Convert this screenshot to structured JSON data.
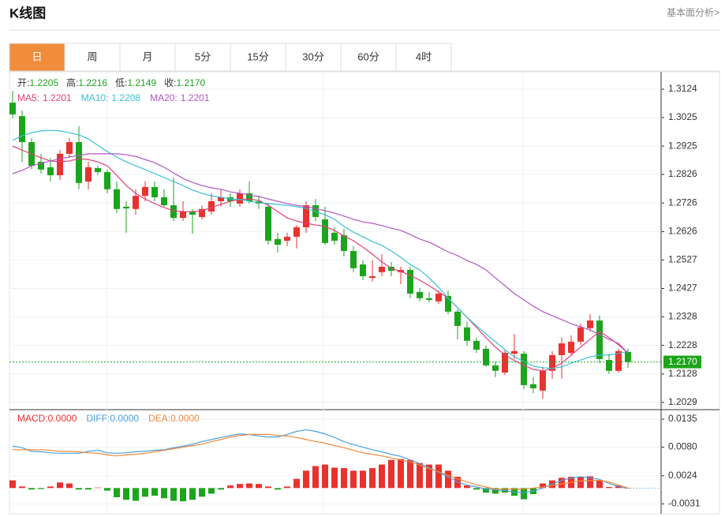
{
  "header": {
    "title": "K线图",
    "link": "基本面分析>"
  },
  "tabs": [
    "日",
    "周",
    "月",
    "5分",
    "15分",
    "30分",
    "60分",
    "4时"
  ],
  "active_tab": 0,
  "chart_data": [
    {
      "type": "candlestick",
      "info": [
        {
          "label": "开:",
          "value": "1.2205"
        },
        {
          "label": "高:",
          "value": "1.2216"
        },
        {
          "label": "低:",
          "value": "1.2149"
        },
        {
          "label": "收:",
          "value": "1.2170"
        }
      ],
      "up_color": "#e8322e",
      "down_color": "#1ca51c",
      "ylim": [
        1.2006,
        1.3182
      ],
      "yticks": [
        1.3124,
        1.3025,
        1.2925,
        1.2826,
        1.2726,
        1.2626,
        1.2527,
        1.2427,
        1.2328,
        1.2228,
        1.2128,
        1.2029
      ],
      "grid": true,
      "last_price": {
        "value": 1.217,
        "label": "1.2170"
      },
      "open": [
        1.3077,
        1.303,
        1.2939,
        1.287,
        1.2851,
        1.2823,
        1.2898,
        1.2939,
        1.2801,
        1.2848,
        1.2834,
        1.2774,
        1.2713,
        1.2705,
        1.2751,
        1.2782,
        1.2746,
        1.2718,
        1.2674,
        1.2696,
        1.2677,
        1.2696,
        1.2732,
        1.2746,
        1.2724,
        1.276,
        1.2732,
        1.2713,
        1.26,
        1.2594,
        1.2608,
        1.2641,
        1.2718,
        1.2669,
        1.2622,
        1.2613,
        1.2558,
        1.2511,
        1.2464,
        1.2484,
        1.2503,
        1.2484,
        1.2492,
        1.2415,
        1.2393,
        1.2382,
        1.2401,
        1.2346,
        1.2291,
        1.2244,
        1.2216,
        1.2158,
        1.2133,
        1.2199,
        1.2199,
        1.2092,
        1.207,
        1.2139,
        1.2194,
        1.2202,
        1.2241,
        1.2288,
        1.2315,
        1.2177,
        1.2139,
        1.2205
      ],
      "high": [
        1.3118,
        1.305,
        1.2953,
        1.2898,
        1.2884,
        1.2911,
        1.2953,
        1.2994,
        1.287,
        1.2856,
        1.2843,
        1.2801,
        1.2732,
        1.2774,
        1.2801,
        1.2801,
        1.2774,
        1.2815,
        1.2732,
        1.2705,
        1.2718,
        1.276,
        1.2774,
        1.276,
        1.2774,
        1.2801,
        1.2751,
        1.2724,
        1.2622,
        1.2622,
        1.2649,
        1.2732,
        1.274,
        1.2713,
        1.2641,
        1.2636,
        1.2575,
        1.2525,
        1.2525,
        1.2547,
        1.252,
        1.2503,
        1.2503,
        1.2429,
        1.2415,
        1.242,
        1.242,
        1.2354,
        1.231,
        1.2255,
        1.2227,
        1.2172,
        1.2213,
        1.2268,
        1.2208,
        1.2117,
        1.2153,
        1.2208,
        1.2255,
        1.2263,
        1.2304,
        1.2337,
        1.2332,
        1.2199,
        1.2216,
        1.2216
      ],
      "low": [
        1.3022,
        1.287,
        1.2843,
        1.2829,
        1.2801,
        1.2807,
        1.2884,
        1.2774,
        1.2774,
        1.2823,
        1.276,
        1.2691,
        1.2622,
        1.2685,
        1.2732,
        1.2732,
        1.2713,
        1.2663,
        1.2663,
        1.2619,
        1.2669,
        1.2685,
        1.2713,
        1.2713,
        1.2713,
        1.2724,
        1.2705,
        1.258,
        1.2553,
        1.2575,
        1.2567,
        1.2622,
        1.2663,
        1.258,
        1.258,
        1.2539,
        1.2484,
        1.2456,
        1.2451,
        1.247,
        1.247,
        1.2442,
        1.2393,
        1.2382,
        1.2379,
        1.2373,
        1.2337,
        1.2249,
        1.2227,
        1.2202,
        1.2153,
        1.2117,
        1.2125,
        1.218,
        1.2075,
        1.2061,
        1.2042,
        1.2111,
        1.2111,
        1.2194,
        1.223,
        1.2277,
        1.2166,
        1.2128,
        1.2133,
        1.2149
      ],
      "close": [
        1.3036,
        1.2939,
        1.2856,
        1.2843,
        1.2823,
        1.2898,
        1.2939,
        1.2796,
        1.2851,
        1.2834,
        1.2774,
        1.2705,
        1.2707,
        1.2751,
        1.2782,
        1.2746,
        1.2718,
        1.2674,
        1.2696,
        1.2685,
        1.2705,
        1.2732,
        1.2746,
        1.2732,
        1.276,
        1.2732,
        1.2724,
        1.2594,
        1.258,
        1.2608,
        1.2641,
        1.2718,
        1.2677,
        1.2586,
        1.2594,
        1.2558,
        1.2498,
        1.247,
        1.247,
        1.2503,
        1.2489,
        1.2492,
        1.2409,
        1.2393,
        1.2387,
        1.2409,
        1.2346,
        1.2296,
        1.2244,
        1.2213,
        1.2158,
        1.2139,
        1.2202,
        1.2208,
        1.2089,
        1.2078,
        1.2139,
        1.2194,
        1.2235,
        1.2241,
        1.2291,
        1.2315,
        1.218,
        1.2139,
        1.2208,
        1.217
      ],
      "ma_series": [
        {
          "name": "MA5:",
          "color": "#e0407c",
          "values": [
            1.2925,
            1.2911,
            1.2898,
            1.2884,
            1.2873,
            1.287,
            1.2873,
            1.2881,
            1.2878,
            1.287,
            1.2856,
            1.2823,
            1.2787,
            1.276,
            1.274,
            1.2724,
            1.271,
            1.2699,
            1.2696,
            1.2696,
            1.2699,
            1.271,
            1.2721,
            1.2732,
            1.2738,
            1.274,
            1.2735,
            1.2718,
            1.2696,
            1.2674,
            1.2663,
            1.2655,
            1.2649,
            1.2644,
            1.263,
            1.2611,
            1.2594,
            1.2572,
            1.2547,
            1.252,
            1.2498,
            1.2486,
            1.2473,
            1.2456,
            1.2437,
            1.2415,
            1.2393,
            1.236,
            1.2326,
            1.2291,
            1.2255,
            1.2222,
            1.2194,
            1.2175,
            1.2158,
            1.2144,
            1.2139,
            1.2147,
            1.2166,
            1.2194,
            1.2222,
            1.2249,
            1.2277,
            1.2255,
            1.223,
            1.2201
          ]
        },
        {
          "name": "MA10:",
          "color": "#3bbfd6",
          "values": [
            1.2945,
            1.2961,
            1.2972,
            1.2978,
            1.298,
            1.2978,
            1.2972,
            1.2964,
            1.295,
            1.2928,
            1.2906,
            1.2887,
            1.287,
            1.2856,
            1.2843,
            1.2829,
            1.2815,
            1.2801,
            1.2787,
            1.2771,
            1.276,
            1.2751,
            1.2746,
            1.274,
            1.2738,
            1.2732,
            1.2727,
            1.2724,
            1.2721,
            1.2718,
            1.2713,
            1.2707,
            1.2696,
            1.2685,
            1.2669,
            1.2644,
            1.2624,
            1.2608,
            1.2591,
            1.2578,
            1.2558,
            1.2536,
            1.2511,
            1.2492,
            1.2464,
            1.2431,
            1.2393,
            1.236,
            1.2326,
            1.2296,
            1.2268,
            1.2241,
            1.2213,
            1.2188,
            1.2172,
            1.2155,
            1.215,
            1.2147,
            1.2153,
            1.2166,
            1.2177,
            1.2188,
            1.2194,
            1.2194,
            1.2199,
            1.2208
          ]
        },
        {
          "name": "MA20:",
          "color": "#b255c6",
          "values": [
            1.2829,
            1.284,
            1.2856,
            1.2865,
            1.2873,
            1.2881,
            1.2887,
            1.2892,
            1.2898,
            1.2898,
            1.2898,
            1.2898,
            1.2895,
            1.2889,
            1.2878,
            1.2867,
            1.2851,
            1.2831,
            1.2812,
            1.2798,
            1.2787,
            1.2779,
            1.2774,
            1.2765,
            1.276,
            1.2754,
            1.2749,
            1.274,
            1.2732,
            1.2724,
            1.2718,
            1.2713,
            1.2707,
            1.2699,
            1.2691,
            1.268,
            1.2669,
            1.266,
            1.2655,
            1.2647,
            1.2638,
            1.263,
            1.2616,
            1.26,
            1.2589,
            1.2572,
            1.2555,
            1.2542,
            1.2525,
            1.2511,
            1.2492,
            1.2464,
            1.2437,
            1.2409,
            1.2387,
            1.2365,
            1.2346,
            1.2332,
            1.2318,
            1.2304,
            1.2293,
            1.2282,
            1.2266,
            1.2249,
            1.2235,
            1.2201
          ]
        }
      ]
    },
    {
      "type": "macd",
      "legend": [
        {
          "label": "MACD:",
          "value": "0.0000",
          "color": "#e8322e"
        },
        {
          "label": "DIFF:",
          "value": "0.0000",
          "color": "#4a9fe0"
        },
        {
          "label": "DEA:",
          "value": "0.0000",
          "color": "#f0883a"
        }
      ],
      "ylim": [
        -0.0049,
        0.0152
      ],
      "yticks": [
        0.0135,
        {
          "value": 0.008,
          "label": "0.0080"
        },
        0.0024,
        -0.0031
      ],
      "up_color": "#e8322e",
      "down_color": "#1ca51c",
      "histogram": [
        0.0015,
        0.0003,
        -0.0003,
        -0.0002,
        0.0003,
        0.0011,
        0.0009,
        -0.0003,
        -0.0003,
        0.0001,
        -0.0005,
        -0.0018,
        -0.0023,
        -0.0025,
        -0.0017,
        -0.0015,
        -0.002,
        -0.0025,
        -0.0026,
        -0.0023,
        -0.0017,
        -0.0011,
        -0.0003,
        0.0005,
        0.0008,
        0.0009,
        0.0008,
        0.0003,
        -0.0003,
        0.0003,
        0.0018,
        0.0034,
        0.0043,
        0.0046,
        0.004,
        0.0039,
        0.0034,
        0.0034,
        0.0039,
        0.0046,
        0.0055,
        0.0057,
        0.0055,
        0.0049,
        0.0046,
        0.0046,
        0.0034,
        0.0022,
        0.0005,
        -0.0003,
        -0.0009,
        -0.0011,
        -0.0009,
        -0.0015,
        -0.0022,
        -0.0012,
        0.0009,
        0.0015,
        0.002,
        0.0022,
        0.0022,
        0.0023,
        0.0015,
        0.0002,
        0.0005,
        0.0
      ],
      "series": [
        {
          "name": "DIFF",
          "color": "#4a9fe0",
          "values": [
            0.0082,
            0.0079,
            0.0072,
            0.0071,
            0.0069,
            0.0068,
            0.0068,
            0.0068,
            0.0072,
            0.0074,
            0.0069,
            0.0068,
            0.0069,
            0.0071,
            0.0072,
            0.0074,
            0.0075,
            0.0079,
            0.0082,
            0.0086,
            0.0091,
            0.0095,
            0.0099,
            0.0103,
            0.0106,
            0.0105,
            0.0102,
            0.01,
            0.01,
            0.0105,
            0.0111,
            0.0114,
            0.0111,
            0.0106,
            0.0099,
            0.0091,
            0.0085,
            0.008,
            0.0075,
            0.0071,
            0.0066,
            0.0062,
            0.0055,
            0.0048,
            0.004,
            0.0031,
            0.0022,
            0.0012,
            0.0006,
            0.0002,
            -0.0002,
            -0.0003,
            -0.0005,
            -0.0008,
            -0.0009,
            -0.0006,
            0.0,
            0.0008,
            0.0015,
            0.002,
            0.0022,
            0.002,
            0.0017,
            0.0009,
            0.0003,
            0.0
          ]
        },
        {
          "name": "DEA",
          "color": "#f0883a",
          "values": [
            0.0075,
            0.0075,
            0.0075,
            0.0075,
            0.0074,
            0.0072,
            0.0072,
            0.0071,
            0.0069,
            0.0068,
            0.0065,
            0.0063,
            0.0065,
            0.0066,
            0.0068,
            0.0071,
            0.0074,
            0.0077,
            0.008,
            0.0083,
            0.0086,
            0.0091,
            0.0095,
            0.01,
            0.0103,
            0.0105,
            0.0105,
            0.0105,
            0.0103,
            0.0102,
            0.0099,
            0.0095,
            0.0091,
            0.0088,
            0.0083,
            0.0079,
            0.0074,
            0.0069,
            0.0066,
            0.0063,
            0.0059,
            0.0055,
            0.0051,
            0.0045,
            0.0038,
            0.0032,
            0.0025,
            0.0018,
            0.0012,
            0.0006,
            0.0002,
            -0.0002,
            -0.0002,
            -0.0002,
            -0.0002,
            0.0,
            0.0002,
            0.0005,
            0.0008,
            0.0011,
            0.0014,
            0.0015,
            0.0015,
            0.0012,
            0.0006,
            0.0
          ]
        }
      ]
    }
  ]
}
